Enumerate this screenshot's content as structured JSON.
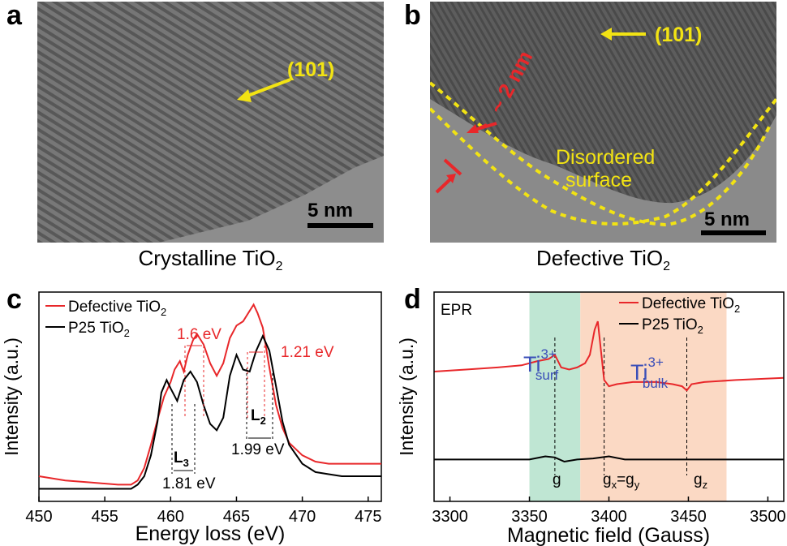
{
  "panels": {
    "a": {
      "letter": "a",
      "caption": "Crystalline TiO",
      "caption_sub": "2",
      "plane_label": "(101)",
      "scalebar": "5 nm"
    },
    "b": {
      "letter": "b",
      "caption": "Defective TiO",
      "caption_sub": "2",
      "plane_label": "(101)",
      "thickness_label": "~ 2 nm",
      "region_label_line1": "Disordered",
      "region_label_line2": "surface",
      "scalebar": "5 nm"
    },
    "c": {
      "letter": "c"
    },
    "d": {
      "letter": "d"
    }
  },
  "colors": {
    "defective": "#e8272a",
    "p25": "#000000",
    "yellow": "#f2e313",
    "ti_label": "#3b4fb8",
    "green_band": "#bfe6d3",
    "orange_band": "#fbd9c4"
  },
  "chart_data": [
    {
      "type": "line",
      "panel": "c",
      "xlabel": "Energy loss (eV)",
      "ylabel": "Intensity (a.u.)",
      "xlim": [
        450,
        476
      ],
      "xticks": [
        "450",
        "455",
        "460",
        "465",
        "470",
        "475"
      ],
      "legend": [
        {
          "text": "Defective TiO",
          "sub": "2",
          "color": "#e8272a"
        },
        {
          "text": "P25 TiO",
          "sub": "2",
          "color": "#000000"
        }
      ],
      "legend_position": "top-left",
      "annotations": {
        "red_gap_1": "1.6 eV",
        "red_gap_2": "1.21 eV",
        "black_gap_1": "1.81 eV",
        "black_gap_2": "1.99 eV",
        "edge_L3": "L",
        "edge_L3_sub": "3",
        "edge_L2": "L",
        "edge_L2_sub": "2"
      },
      "series": [
        {
          "name": "Defective TiO2",
          "color": "#e8272a",
          "x": [
            450,
            452,
            454,
            456,
            457,
            457.5,
            458,
            458.5,
            459,
            459.5,
            460,
            460.3,
            460.7,
            461,
            461.3,
            461.7,
            462,
            462.5,
            463,
            463.5,
            464,
            464.5,
            465,
            465.5,
            466,
            466.3,
            466.6,
            467,
            467.5,
            468,
            468.5,
            469,
            470,
            471,
            472,
            473,
            474,
            476
          ],
          "y": [
            0.12,
            0.1,
            0.09,
            0.08,
            0.08,
            0.1,
            0.16,
            0.27,
            0.39,
            0.5,
            0.57,
            0.63,
            0.67,
            0.62,
            0.7,
            0.77,
            0.8,
            0.75,
            0.66,
            0.6,
            0.66,
            0.78,
            0.84,
            0.86,
            0.91,
            0.94,
            0.9,
            0.83,
            0.64,
            0.46,
            0.35,
            0.28,
            0.22,
            0.19,
            0.18,
            0.18,
            0.18,
            0.18
          ]
        },
        {
          "name": "P25 TiO2",
          "color": "#000000",
          "x": [
            450,
            452,
            454,
            456,
            457,
            457.5,
            458,
            458.5,
            459,
            459.3,
            459.7,
            460,
            460.5,
            461,
            461.5,
            462,
            462.5,
            463,
            463.5,
            464,
            464.5,
            465,
            465.5,
            466,
            466.5,
            467,
            467.5,
            468,
            468.5,
            469,
            470,
            471,
            472,
            473,
            474,
            476
          ],
          "y": [
            0.06,
            0.06,
            0.06,
            0.06,
            0.06,
            0.08,
            0.12,
            0.22,
            0.38,
            0.52,
            0.58,
            0.54,
            0.48,
            0.58,
            0.62,
            0.57,
            0.46,
            0.37,
            0.34,
            0.4,
            0.6,
            0.7,
            0.63,
            0.62,
            0.72,
            0.79,
            0.72,
            0.55,
            0.38,
            0.27,
            0.18,
            0.14,
            0.13,
            0.12,
            0.12,
            0.12
          ]
        }
      ]
    },
    {
      "type": "line",
      "panel": "d",
      "xlabel": "Magnetic field (Gauss)",
      "ylabel": "Intensity (a.u.)",
      "xlim": [
        3290,
        3510
      ],
      "xticks": [
        "3300",
        "3350",
        "3400",
        "3450",
        "3500"
      ],
      "inner_label": "EPR",
      "legend": [
        {
          "text": "Defective TiO",
          "sub": "2",
          "color": "#e8272a"
        },
        {
          "text": "P25 TiO",
          "sub": "2",
          "color": "#000000"
        }
      ],
      "legend_position": "top-right",
      "regions": [
        {
          "x_start": 3350,
          "x_end": 3382,
          "color": "#bfe6d3",
          "label": "Ti",
          "sup": "3+",
          "sub": "surf"
        },
        {
          "x_start": 3382,
          "x_end": 3474,
          "color": "#fbd9c4",
          "label": "Ti",
          "sup": "3+",
          "sub": "bulk"
        }
      ],
      "markers": [
        {
          "x": 3366,
          "label": "g"
        },
        {
          "x": 3397,
          "label": "g",
          "sub1": "x",
          "mid": "=g",
          "sub2": "y"
        },
        {
          "x": 3449,
          "label": "g",
          "sub1": "z"
        }
      ],
      "series": [
        {
          "name": "Defective TiO2",
          "color": "#e8272a",
          "x": [
            3290,
            3310,
            3330,
            3345,
            3355,
            3362,
            3366,
            3370,
            3375,
            3380,
            3385,
            3388,
            3391,
            3393,
            3395,
            3397,
            3400,
            3405,
            3415,
            3430,
            3440,
            3446,
            3449,
            3452,
            3460,
            3480,
            3510
          ],
          "y": [
            0.62,
            0.63,
            0.64,
            0.65,
            0.67,
            0.68,
            0.7,
            0.64,
            0.63,
            0.64,
            0.66,
            0.7,
            0.82,
            0.86,
            0.72,
            0.58,
            0.55,
            0.56,
            0.57,
            0.57,
            0.56,
            0.55,
            0.53,
            0.56,
            0.57,
            0.58,
            0.59
          ]
        },
        {
          "name": "P25 TiO2",
          "color": "#000000",
          "x": [
            3290,
            3320,
            3350,
            3360,
            3366,
            3372,
            3380,
            3390,
            3400,
            3410,
            3420,
            3440,
            3460,
            3480,
            3510
          ],
          "y": [
            0.2,
            0.2,
            0.2,
            0.215,
            0.21,
            0.19,
            0.2,
            0.205,
            0.215,
            0.2,
            0.2,
            0.2,
            0.2,
            0.2,
            0.2
          ]
        }
      ]
    }
  ]
}
